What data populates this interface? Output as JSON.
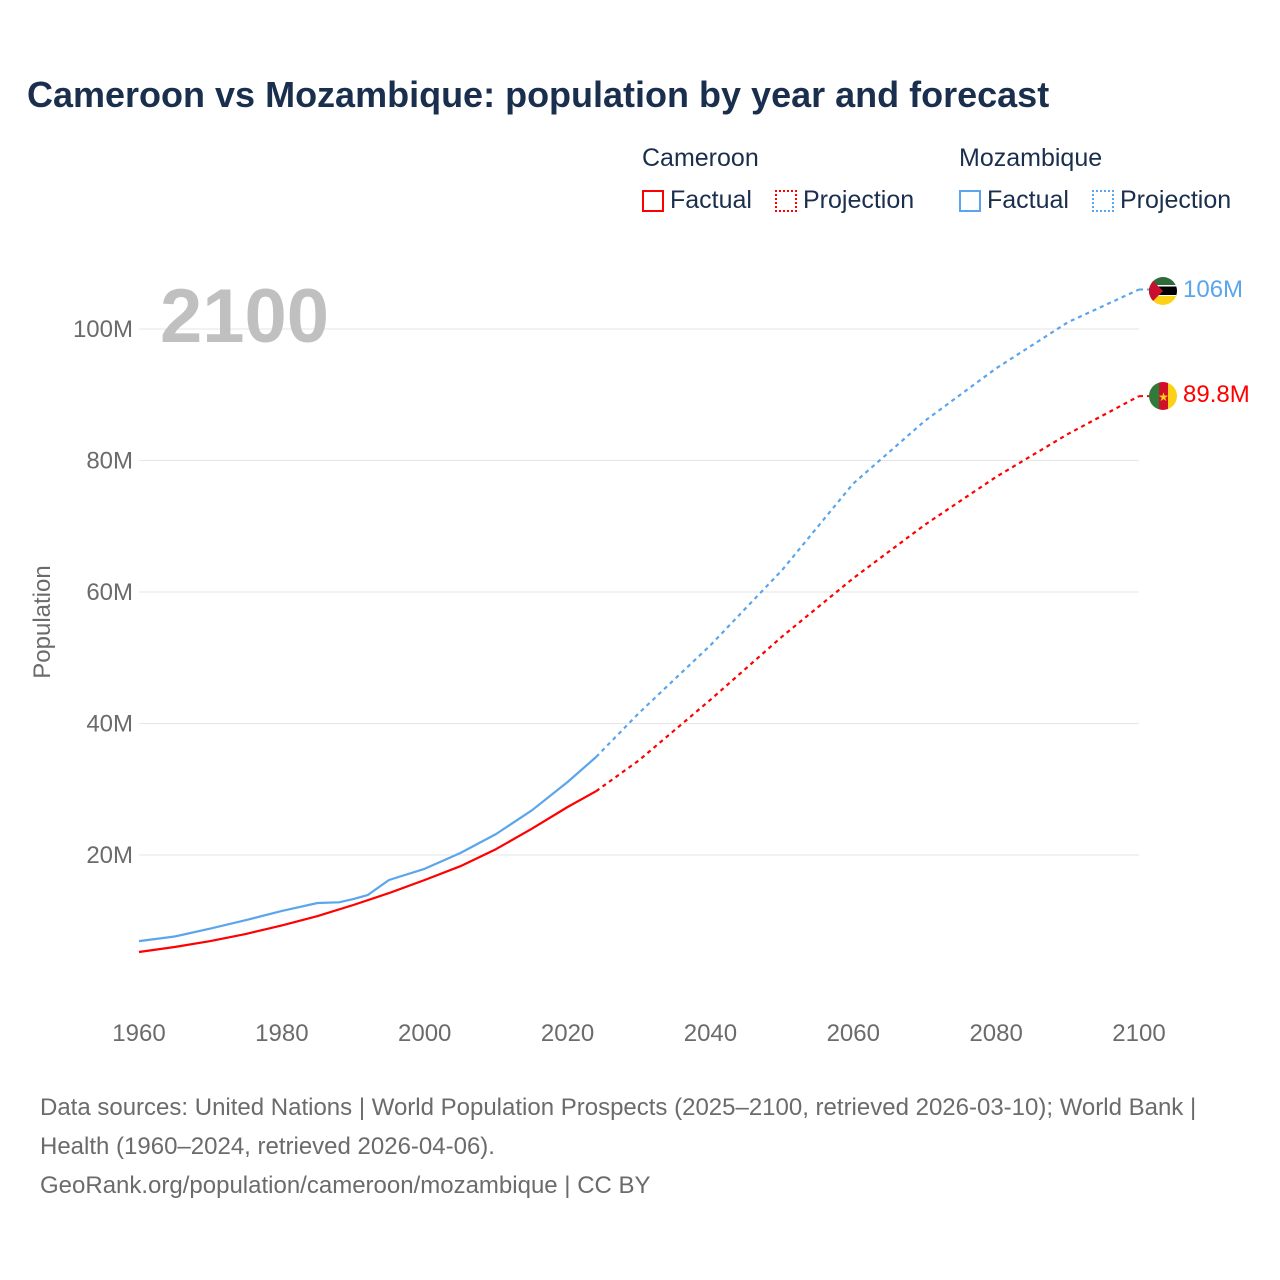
{
  "title": "Cameroon vs Mozambique: population by year and forecast",
  "legend": {
    "groups": [
      {
        "name": "Cameroon",
        "factual": "Factual",
        "projection": "Projection",
        "color": "#ff0000"
      },
      {
        "name": "Mozambique",
        "factual": "Factual",
        "projection": "Projection",
        "color": "#5aa5ec"
      }
    ]
  },
  "year_label": "2100",
  "footer": {
    "sources": "Data sources: United Nations | World Population Prospects (2025–2100, retrieved 2026-03-10); World Bank | Health (1960–2024, retrieved 2026-04-06).",
    "link": "GeoRank.org/population/cameroon/mozambique | CC BY"
  },
  "chart_data": {
    "type": "line",
    "title": "Cameroon vs Mozambique: population by year and forecast",
    "xlabel": "",
    "ylabel": "Population",
    "xlim": [
      1960,
      2100
    ],
    "ylim": [
      0,
      110
    ],
    "x_ticks": [
      "1960",
      "1980",
      "2000",
      "2020",
      "2040",
      "2060",
      "2080",
      "2100"
    ],
    "y_ticks": [
      {
        "v": 20,
        "label": "20M"
      },
      {
        "v": 40,
        "label": "40M"
      },
      {
        "v": 60,
        "label": "60M"
      },
      {
        "v": 80,
        "label": "80M"
      },
      {
        "v": 100,
        "label": "100M"
      }
    ],
    "grid": true,
    "series": [
      {
        "name": "Cameroon",
        "color": "#ff0000",
        "end_label": "89.8M",
        "factual": {
          "x": [
            1960,
            1965,
            1970,
            1975,
            1980,
            1985,
            1990,
            1995,
            2000,
            2005,
            2010,
            2015,
            2020,
            2024
          ],
          "y": [
            5.25,
            6.0,
            6.9,
            8.0,
            9.3,
            10.7,
            12.4,
            14.2,
            16.2,
            18.3,
            20.9,
            24.0,
            27.3,
            29.7
          ]
        },
        "projection": {
          "x": [
            2024,
            2030,
            2040,
            2050,
            2060,
            2070,
            2080,
            2090,
            2100
          ],
          "y": [
            29.7,
            34.4,
            43.6,
            53.2,
            62.1,
            70.2,
            77.5,
            84.0,
            89.8
          ]
        }
      },
      {
        "name": "Mozambique",
        "color": "#5aa5ec",
        "end_label": "106M",
        "factual": {
          "x": [
            1960,
            1965,
            1970,
            1975,
            1980,
            1985,
            1988,
            1990,
            1992,
            1995,
            2000,
            2005,
            2010,
            2015,
            2020,
            2024
          ],
          "y": [
            6.9,
            7.6,
            8.8,
            10.1,
            11.5,
            12.7,
            12.8,
            13.3,
            13.9,
            16.2,
            17.9,
            20.3,
            23.2,
            26.8,
            31.1,
            34.9
          ]
        },
        "projection": {
          "x": [
            2024,
            2030,
            2040,
            2050,
            2060,
            2070,
            2080,
            2090,
            2100
          ],
          "y": [
            34.9,
            41.6,
            51.9,
            63.3,
            76.5,
            86.0,
            94.0,
            101.0,
            106.0
          ]
        }
      }
    ]
  }
}
